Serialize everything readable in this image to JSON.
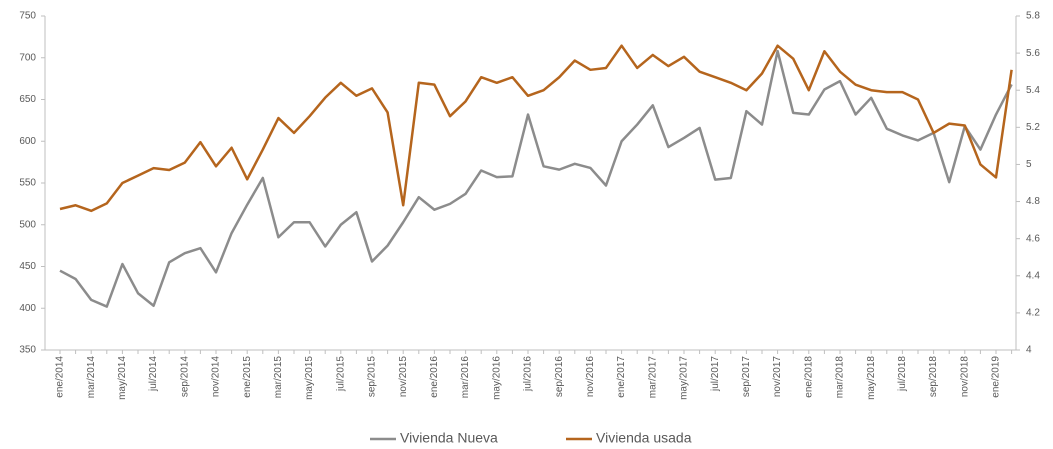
{
  "chart_data": {
    "type": "line",
    "categories": [
      "ene/2014",
      null,
      "mar/2014",
      null,
      "may/2014",
      null,
      "jul/2014",
      null,
      "sep/2014",
      null,
      "nov/2014",
      null,
      "ene/2015",
      null,
      "mar/2015",
      null,
      "may/2015",
      null,
      "jul/2015",
      null,
      "sep/2015",
      null,
      "nov/2015",
      null,
      "ene/2016",
      null,
      "mar/2016",
      null,
      "may/2016",
      null,
      "jul/2016",
      null,
      "sep/2016",
      null,
      "nov/2016",
      null,
      "ene/2017",
      null,
      "mar/2017",
      null,
      "may/2017",
      null,
      "jul/2017",
      null,
      "sep/2017",
      null,
      "nov/2017",
      null,
      "ene/2018",
      null,
      "mar/2018",
      null,
      "may/2018",
      null,
      "jul/2018",
      null,
      "sep/2018",
      null,
      "nov/2018",
      null,
      "ene/2019",
      null
    ],
    "series": [
      {
        "name": "Vivienda Nueva",
        "color": "#8c8c8c",
        "axis": "y",
        "values": [
          445,
          435,
          410,
          402,
          453,
          418,
          403,
          455,
          466,
          472,
          443,
          490,
          524,
          556,
          485,
          503,
          503,
          474,
          500,
          515,
          456,
          475,
          503,
          533,
          518,
          525,
          537,
          565,
          557,
          558,
          632,
          570,
          566,
          573,
          568,
          547,
          600,
          620,
          643,
          593,
          604,
          616,
          554,
          556,
          636,
          620,
          708,
          634,
          632,
          662,
          672,
          632,
          652,
          615,
          607,
          601,
          610,
          551,
          618,
          590,
          632,
          668
        ]
      },
      {
        "name": "Vivienda usada",
        "color": "#b5651d",
        "axis": "y2",
        "values": [
          4.76,
          4.78,
          4.75,
          4.79,
          4.9,
          4.94,
          4.98,
          4.97,
          5.01,
          5.12,
          4.99,
          5.09,
          4.92,
          5.08,
          5.25,
          5.17,
          5.26,
          5.36,
          5.44,
          5.37,
          5.41,
          5.28,
          4.78,
          5.44,
          5.43,
          5.26,
          5.34,
          5.47,
          5.44,
          5.47,
          5.37,
          5.4,
          5.47,
          5.56,
          5.51,
          5.52,
          5.64,
          5.52,
          5.59,
          5.53,
          5.58,
          5.5,
          5.47,
          5.44,
          5.4,
          5.49,
          5.64,
          5.57,
          5.4,
          5.61,
          5.5,
          5.43,
          5.4,
          5.39,
          5.39,
          5.35,
          5.17,
          5.22,
          5.21,
          5.0,
          4.93,
          5.51
        ]
      }
    ],
    "ylim": [
      350,
      750
    ],
    "yticks": [
      350,
      400,
      450,
      500,
      550,
      600,
      650,
      700,
      750
    ],
    "y2lim": [
      4,
      5.8
    ],
    "y2ticks": [
      4,
      4.2,
      4.4,
      4.6,
      4.8,
      5,
      5.2,
      5.4,
      5.6,
      5.8
    ],
    "grid": false,
    "legend": "bottom"
  }
}
